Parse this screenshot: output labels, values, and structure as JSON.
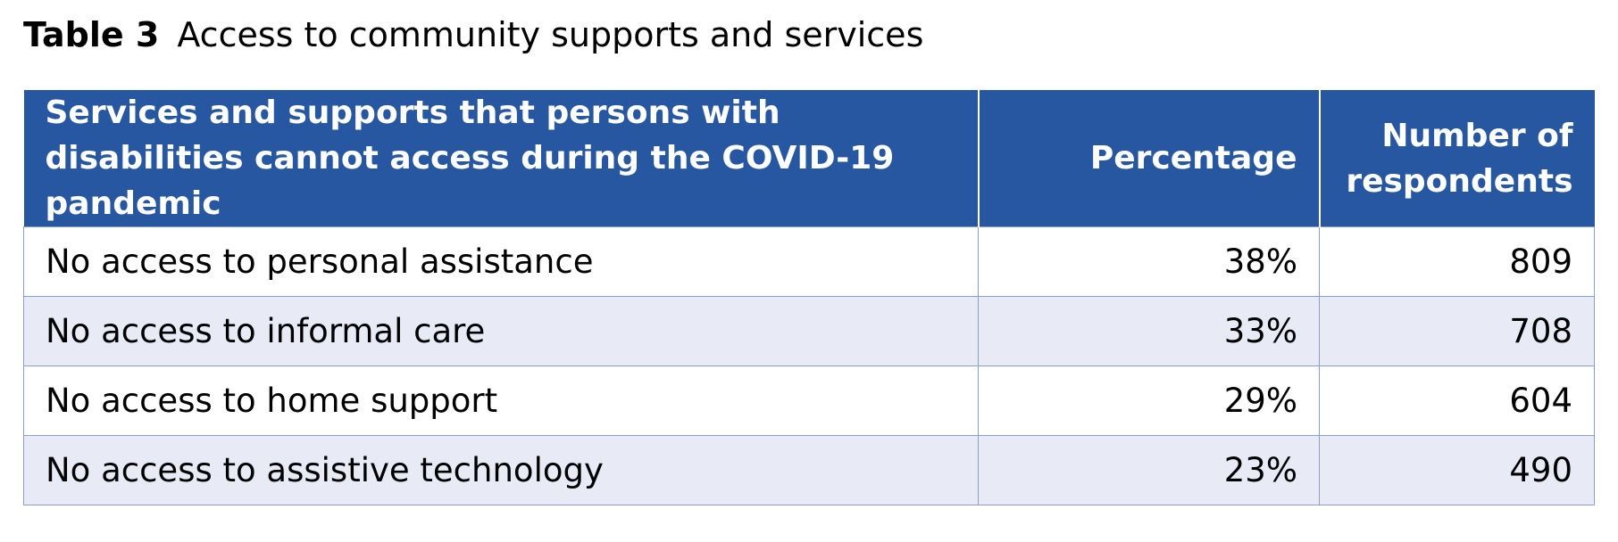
{
  "caption": {
    "label": "Table 3",
    "title": "Access to community supports and services"
  },
  "table": {
    "headers": [
      "Services and supports that persons with disabilities cannot access during the COVID-19 pandemic",
      "Percentage",
      "Number of respondents"
    ],
    "rows": [
      {
        "service": "No access to personal assistance",
        "percentage": "38%",
        "respondents": "809"
      },
      {
        "service": "No access to informal care",
        "percentage": "33%",
        "respondents": "708"
      },
      {
        "service": "No access to home support",
        "percentage": "29%",
        "respondents": "604"
      },
      {
        "service": "No access to assistive technology",
        "percentage": "23%",
        "respondents": "490"
      }
    ]
  },
  "colors": {
    "header_background": "#2657a0",
    "header_text": "#ffffff",
    "alt_row_background": "#e8ebf6",
    "border": "#8aa0cc"
  }
}
